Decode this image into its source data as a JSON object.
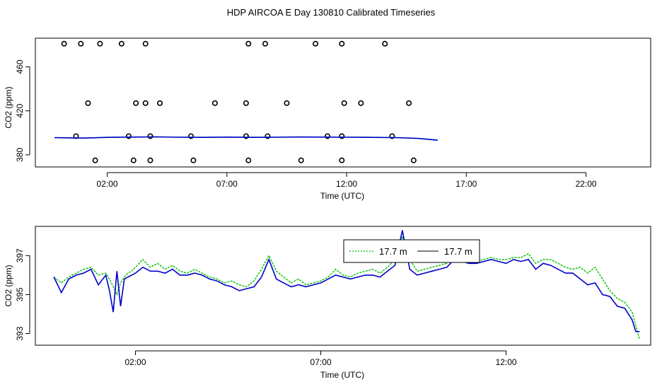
{
  "title": "HDP AIRCOA E  Day 130810  Calibrated Timeseries",
  "colors": {
    "green": "#00c000",
    "blue": "#0000cc",
    "black": "#000000"
  },
  "chart_data": [
    {
      "type": "scatter+line",
      "xlabel": "Time (UTC)",
      "ylabel": "CO2 (ppm)",
      "xlim": [
        -1.0,
        24.7
      ],
      "ylim": [
        369,
        486
      ],
      "xticks": [
        2,
        7,
        12,
        17,
        22
      ],
      "xtick_labels": [
        "02:00",
        "07:00",
        "12:00",
        "17:00",
        "22:00"
      ],
      "yticks": [
        380,
        420,
        460
      ],
      "ytick_labels": [
        "380",
        "420",
        "460"
      ],
      "calibration_points": {
        "x": [
          0.2,
          0.9,
          1.7,
          2.6,
          1.2,
          3.2,
          3.6,
          4.2,
          6.5,
          7.8,
          9.5,
          11.9,
          12.6,
          14.6,
          0.7,
          2.9,
          3.8,
          5.5,
          7.8,
          8.7,
          11.2,
          11.8,
          13.9,
          1.5,
          3.1,
          3.8,
          5.6,
          7.9,
          10.1,
          11.8,
          14.8,
          3.6,
          7.9,
          8.6,
          10.7,
          11.8,
          13.6
        ],
        "y": [
          481,
          481,
          481,
          481,
          427,
          427,
          427,
          427,
          427,
          427,
          427,
          427,
          427,
          427,
          397,
          397,
          397,
          397,
          397,
          397,
          397,
          397,
          397,
          375,
          375,
          375,
          375,
          375,
          375,
          375,
          375,
          481,
          481,
          481,
          481,
          481,
          481
        ]
      },
      "series": [
        {
          "color": "green",
          "x": [
            -0.2,
            1.0,
            2.0,
            3.0,
            4.0,
            5.0,
            6.0,
            7.0,
            8.0,
            9.0,
            10.0,
            11.0,
            12.0,
            13.0,
            14.0,
            15.0,
            15.8
          ],
          "y": [
            395.5,
            395.3,
            396.0,
            396.2,
            396.4,
            396.1,
            396.0,
            396.2,
            396.0,
            396.1,
            396.3,
            396.2,
            396.1,
            396.0,
            395.8,
            395.0,
            393.5
          ]
        },
        {
          "color": "blue",
          "x": [
            -0.2,
            1.0,
            2.0,
            3.0,
            4.0,
            5.0,
            6.0,
            7.0,
            8.0,
            9.0,
            10.0,
            11.0,
            12.0,
            13.0,
            14.0,
            15.0,
            15.8
          ],
          "y": [
            395.6,
            395.2,
            395.9,
            396.1,
            396.3,
            396.0,
            395.9,
            396.1,
            395.9,
            396.0,
            396.2,
            396.1,
            396.0,
            395.9,
            395.7,
            394.9,
            393.3
          ]
        }
      ]
    },
    {
      "type": "line",
      "xlabel": "Time (UTC)",
      "ylabel": "CO2 (ppm)",
      "xlim": [
        -0.7,
        15.9
      ],
      "ylim": [
        392.4,
        398.5
      ],
      "xticks": [
        2,
        7,
        12
      ],
      "xtick_labels": [
        "02:00",
        "07:00",
        "12:00"
      ],
      "yticks": [
        393,
        395,
        397
      ],
      "ytick_labels": [
        "393",
        "395",
        "397"
      ],
      "legend": {
        "position": "top-center",
        "entries": [
          {
            "label": "17.7 m",
            "color": "green"
          },
          {
            "label": "17.7 m",
            "color": "blue"
          }
        ]
      },
      "series": [
        {
          "color": "green",
          "x": [
            -0.2,
            0.0,
            0.2,
            0.4,
            0.6,
            0.8,
            1.0,
            1.2,
            1.3,
            1.4,
            1.5,
            1.6,
            1.7,
            1.8,
            1.9,
            2.0,
            2.2,
            2.4,
            2.6,
            2.8,
            3.0,
            3.2,
            3.4,
            3.6,
            3.8,
            4.0,
            4.2,
            4.4,
            4.6,
            4.8,
            5.0,
            5.2,
            5.4,
            5.6,
            5.8,
            6.0,
            6.2,
            6.4,
            6.6,
            6.8,
            7.0,
            7.2,
            7.4,
            7.6,
            7.8,
            8.0,
            8.2,
            8.4,
            8.6,
            8.8,
            9.0,
            9.2,
            9.4,
            9.6,
            9.8,
            10.0,
            10.2,
            10.4,
            10.6,
            10.8,
            11.0,
            11.2,
            11.4,
            11.6,
            11.8,
            12.0,
            12.2,
            12.4,
            12.6,
            12.8,
            13.0,
            13.2,
            13.4,
            13.6,
            13.8,
            14.0,
            14.2,
            14.4,
            14.6,
            14.8,
            15.0,
            15.2,
            15.4,
            15.5,
            15.6
          ],
          "y": [
            395.9,
            395.6,
            395.9,
            396.1,
            396.3,
            396.4,
            396.0,
            396.1,
            395.8,
            395.4,
            395.0,
            395.6,
            395.9,
            396.1,
            396.2,
            396.4,
            396.8,
            396.4,
            396.6,
            396.3,
            396.5,
            396.2,
            396.1,
            396.3,
            396.1,
            395.9,
            395.8,
            395.6,
            395.7,
            395.5,
            395.4,
            395.7,
            396.3,
            397.0,
            396.2,
            395.9,
            395.6,
            395.8,
            395.5,
            395.6,
            395.7,
            395.9,
            396.3,
            396.0,
            395.9,
            396.1,
            396.2,
            396.3,
            396.1,
            396.4,
            396.8,
            398.0,
            396.8,
            396.2,
            396.3,
            396.4,
            396.5,
            396.6,
            396.9,
            396.8,
            396.8,
            396.7,
            396.8,
            396.9,
            396.8,
            396.8,
            396.9,
            396.9,
            397.1,
            396.6,
            396.8,
            396.8,
            396.6,
            396.4,
            396.3,
            396.4,
            396.1,
            396.4,
            395.8,
            395.2,
            394.8,
            394.6,
            394.1,
            393.4,
            392.7
          ]
        },
        {
          "color": "blue",
          "x": [
            -0.2,
            0.0,
            0.2,
            0.4,
            0.6,
            0.8,
            1.0,
            1.2,
            1.3,
            1.4,
            1.5,
            1.6,
            1.7,
            1.8,
            1.9,
            2.0,
            2.2,
            2.4,
            2.6,
            2.8,
            3.0,
            3.2,
            3.4,
            3.6,
            3.8,
            4.0,
            4.2,
            4.4,
            4.6,
            4.8,
            5.0,
            5.2,
            5.4,
            5.6,
            5.8,
            6.0,
            6.2,
            6.4,
            6.6,
            6.8,
            7.0,
            7.2,
            7.4,
            7.6,
            7.8,
            8.0,
            8.2,
            8.4,
            8.6,
            8.8,
            9.0,
            9.2,
            9.4,
            9.6,
            9.8,
            10.0,
            10.2,
            10.4,
            10.6,
            10.8,
            11.0,
            11.2,
            11.4,
            11.6,
            11.8,
            12.0,
            12.2,
            12.4,
            12.6,
            12.8,
            13.0,
            13.2,
            13.4,
            13.6,
            13.8,
            14.0,
            14.2,
            14.4,
            14.6,
            14.8,
            15.0,
            15.2,
            15.4,
            15.5,
            15.6
          ],
          "y": [
            395.9,
            395.1,
            395.8,
            396.0,
            396.1,
            396.3,
            395.5,
            396.0,
            395.2,
            394.1,
            396.2,
            394.4,
            395.8,
            395.9,
            396.0,
            396.1,
            396.4,
            396.2,
            396.2,
            396.1,
            396.3,
            396.0,
            396.0,
            396.1,
            396.0,
            395.8,
            395.7,
            395.5,
            395.4,
            395.2,
            395.3,
            395.4,
            395.9,
            396.8,
            395.8,
            395.6,
            395.4,
            395.5,
            395.4,
            395.5,
            395.6,
            395.8,
            396.0,
            395.9,
            395.8,
            395.9,
            396.0,
            396.0,
            395.9,
            396.2,
            396.5,
            398.3,
            396.3,
            396.0,
            396.1,
            396.2,
            396.3,
            396.4,
            396.8,
            396.7,
            396.6,
            396.6,
            396.7,
            396.8,
            396.7,
            396.6,
            396.8,
            396.7,
            396.8,
            396.3,
            396.6,
            396.5,
            396.3,
            396.1,
            396.1,
            395.8,
            395.5,
            395.6,
            395.0,
            394.9,
            394.4,
            394.3,
            393.7,
            393.1,
            393.1
          ]
        }
      ]
    }
  ]
}
